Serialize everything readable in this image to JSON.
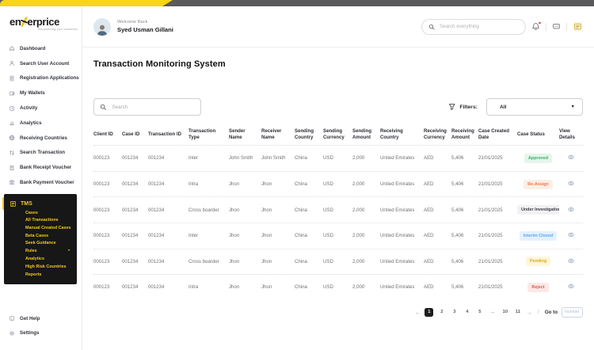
{
  "logo": {
    "part1": "en",
    "part2": "erprice",
    "tagline": "empowering your business"
  },
  "header": {
    "welcome": "Welcome Back",
    "username": "Syed Usman Gillani",
    "search_placeholder": "Search everything"
  },
  "sidebar": {
    "items": [
      {
        "label": "Dashboard",
        "icon": "home"
      },
      {
        "label": "Search User Account",
        "icon": "user"
      },
      {
        "label": "Registration Applications",
        "icon": "document"
      },
      {
        "label": "My Wallets",
        "icon": "wallet"
      },
      {
        "label": "Activity",
        "icon": "clock"
      },
      {
        "label": "Analytics",
        "icon": "chart"
      },
      {
        "label": "Receiving Countries",
        "icon": "globe"
      },
      {
        "label": "Search Transaction",
        "icon": "transfer"
      },
      {
        "label": "Bank Receipt Voucher",
        "icon": "receipt"
      },
      {
        "label": "Bank Payment Voucher",
        "icon": "bank"
      }
    ],
    "tms": {
      "label": "TMS",
      "icon": "tms",
      "items": [
        {
          "label": "Cases"
        },
        {
          "label": "All Transactions"
        },
        {
          "label": "Manual Created Cases"
        },
        {
          "label": "Beta Cases"
        },
        {
          "label": "Seek Guidance"
        },
        {
          "label": "Rules",
          "has_chevron": true
        },
        {
          "label": "Analytics"
        },
        {
          "label": "High Risk Countries"
        },
        {
          "label": "Reports"
        }
      ]
    },
    "footer": [
      {
        "label": "Get Help",
        "icon": "info"
      },
      {
        "label": "Settings",
        "icon": "gear"
      }
    ]
  },
  "main": {
    "title": "Transaction Monitoring System",
    "table_search_placeholder": "Search",
    "filters_label": "Filters:",
    "filter_value": "All"
  },
  "table": {
    "columns": [
      "Client ID",
      "Case ID",
      "Transaction ID",
      "Transaction Type",
      "Sender Name",
      "Receiver Name",
      "Sending Country",
      "Sending Currency",
      "Sending Amount",
      "Receiving Country",
      "Receiving Currency",
      "Receiving Amount",
      "Case Created Date",
      "Case Status",
      "View Details"
    ],
    "rows": [
      {
        "client_id": "000123",
        "case_id": "001234",
        "transaction_id": "001234",
        "transaction_type": "Inter",
        "sender_name": "John Smith",
        "receiver_name": "John Smith",
        "sending_country": "China",
        "sending_currency": "USD",
        "sending_amount": "2,000",
        "receiving_country": "Untied Emirates",
        "receiving_currency": "AED",
        "receiving_amount": "5,406",
        "case_created_date": "21/01/2025",
        "case_status": "Approved"
      },
      {
        "client_id": "000123",
        "case_id": "001234",
        "transaction_id": "001234",
        "transaction_type": "Intra",
        "sender_name": "Jhon",
        "receiver_name": "Jhon",
        "sending_country": "China",
        "sending_currency": "USD",
        "sending_amount": "2,000",
        "receiving_country": "Untied Emirates",
        "receiving_currency": "AED",
        "receiving_amount": "5,406",
        "case_created_date": "21/01/2025",
        "case_status": "Re-Assign"
      },
      {
        "client_id": "000123",
        "case_id": "001234",
        "transaction_id": "001234",
        "transaction_type": "Cross boarder",
        "sender_name": "Jhon",
        "receiver_name": "Jhon",
        "sending_country": "China",
        "sending_currency": "USD",
        "sending_amount": "2,000",
        "receiving_country": "Untied Emirates",
        "receiving_currency": "AED",
        "receiving_amount": "5,406",
        "case_created_date": "21/01/2025",
        "case_status": "Under Investigation"
      },
      {
        "client_id": "000123",
        "case_id": "001234",
        "transaction_id": "001234",
        "transaction_type": "Inter",
        "sender_name": "Jhon",
        "receiver_name": "Jhon",
        "sending_country": "China",
        "sending_currency": "USD",
        "sending_amount": "2,000",
        "receiving_country": "Untied Emirates",
        "receiving_currency": "AED",
        "receiving_amount": "5,406",
        "case_created_date": "21/01/2025",
        "case_status": "Interim Closed"
      },
      {
        "client_id": "000123",
        "case_id": "001234",
        "transaction_id": "001234",
        "transaction_type": "Cross boarder",
        "sender_name": "Jhon",
        "receiver_name": "Jhon",
        "sending_country": "China",
        "sending_currency": "USD",
        "sending_amount": "2,000",
        "receiving_country": "Untied Emirates",
        "receiving_currency": "AED",
        "receiving_amount": "5,406",
        "case_created_date": "21/01/2025",
        "case_status": "Pending"
      },
      {
        "client_id": "000123",
        "case_id": "001234",
        "transaction_id": "001234",
        "transaction_type": "Intra",
        "sender_name": "Jhon",
        "receiver_name": "Jhon",
        "sending_country": "China",
        "sending_currency": "USD",
        "sending_amount": "2,000",
        "receiving_country": "Untied Emirates",
        "receiving_currency": "AED",
        "receiving_amount": "5,406",
        "case_created_date": "21/01/2025",
        "case_status": "Reject"
      }
    ]
  },
  "status_colors": {
    "Approved": {
      "bg": "#e4f6ea",
      "fg": "#35b567"
    },
    "Re-Assign": {
      "bg": "#fdeee5",
      "fg": "#ef7850"
    },
    "Under Investigation": {
      "bg": "#f1f1f4",
      "fg": "#3a3c42"
    },
    "Interim Closed": {
      "bg": "#e4f1fd",
      "fg": "#5aa7f0"
    },
    "Pending": {
      "bg": "#fdf6d8",
      "fg": "#d8ab25"
    },
    "Reject": {
      "bg": "#fae9e7",
      "fg": "#dd5a4f"
    }
  },
  "pagination": {
    "prev": "←",
    "next": "→",
    "pages": [
      "1",
      "2",
      "3",
      "4",
      "5",
      "...",
      "10",
      "11"
    ],
    "active_page": "1",
    "divider": "/",
    "goto_label": "Go to",
    "goto_placeholder": "Number"
  },
  "colors": {
    "accent_yellow": "#f5c518",
    "topbar_gray": "#5a5a5c",
    "notification_badge": "#e8483f"
  }
}
